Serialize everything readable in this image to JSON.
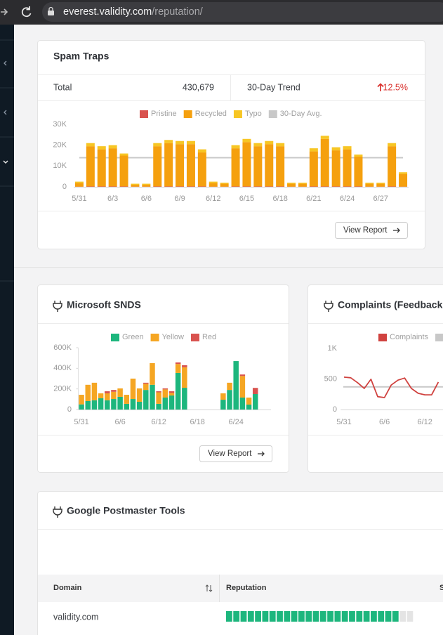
{
  "browser": {
    "url_host": "everest.validity.com",
    "url_path": "/reputation/"
  },
  "spam_traps": {
    "title": "Spam Traps",
    "total_label": "Total",
    "total": "430,679",
    "trend_label": "30-Day Trend",
    "trend": "12.5%",
    "button": "View Report"
  },
  "microsoft_snds": {
    "title": "Microsoft SNDS",
    "button": "View Report"
  },
  "complaints": {
    "title": "Complaints (Feedback L"
  },
  "google_postmaster": {
    "title": "Google Postmaster Tools",
    "columns": [
      "Domain",
      "Reputation",
      "S"
    ],
    "rows": [
      [
        "validity.com"
      ]
    ]
  },
  "chart_data": [
    {
      "type": "bar",
      "stacked": true,
      "categories": [
        "5/31",
        null,
        null,
        "6/3",
        null,
        null,
        "6/6",
        null,
        null,
        "6/9",
        null,
        null,
        "6/12",
        null,
        null,
        "6/15",
        null,
        null,
        "6/18",
        null,
        null,
        "6/21",
        null,
        null,
        "6/24",
        null,
        null,
        "6/27",
        null,
        null
      ],
      "series": [
        {
          "name": "Pristine",
          "color": "#d9534f",
          "values": [
            100,
            200,
            200,
            200,
            200,
            100,
            100,
            200,
            200,
            200,
            200,
            200,
            100,
            100,
            200,
            200,
            200,
            200,
            200,
            100,
            100,
            200,
            200,
            200,
            200,
            200,
            100,
            100,
            200,
            100
          ]
        },
        {
          "name": "Recycled",
          "color": "#f5a00e",
          "values": [
            1800,
            19300,
            17800,
            18300,
            14800,
            900,
            900,
            19300,
            20800,
            20300,
            20300,
            16300,
            1800,
            1400,
            18300,
            21300,
            19300,
            20300,
            19300,
            1400,
            1400,
            16800,
            22800,
            17300,
            17800,
            14300,
            1400,
            1400,
            19300,
            6100
          ]
        },
        {
          "name": "Typo",
          "color": "#f7c624",
          "values": [
            600,
            1500,
            1500,
            1500,
            1000,
            500,
            500,
            1500,
            1500,
            1500,
            1500,
            1500,
            600,
            500,
            1500,
            1500,
            1500,
            1500,
            1500,
            500,
            500,
            1500,
            1500,
            1500,
            1500,
            1000,
            500,
            500,
            1500,
            800
          ]
        }
      ],
      "reference_line": {
        "name": "30-Day Avg.",
        "color": "#c8c8c8",
        "value": 14000
      },
      "ylim": [
        0,
        30000
      ],
      "yticks": [
        0,
        {
          "value": 10000,
          "label": "10K"
        },
        {
          "value": 20000,
          "label": "20K"
        },
        {
          "value": 30000,
          "label": "30K"
        }
      ]
    },
    {
      "type": "bar",
      "stacked": true,
      "categories": [
        "5/31",
        null,
        null,
        null,
        null,
        null,
        "6/6",
        null,
        null,
        null,
        null,
        null,
        "6/12",
        null,
        null,
        null,
        null,
        null,
        "6/18",
        null,
        null,
        null,
        null,
        null,
        "6/24",
        null,
        null,
        null
      ],
      "series": [
        {
          "name": "Green",
          "color": "#1db67d",
          "values": [
            50000,
            82000,
            90000,
            109000,
            90000,
            102000,
            123000,
            55000,
            102000,
            75000,
            190000,
            240000,
            55000,
            116000,
            136000,
            355000,
            211000,
            null,
            null,
            null,
            null,
            null,
            95000,
            190000,
            470000,
            116000,
            48000,
            150000
          ]
        },
        {
          "name": "Yellow",
          "color": "#f5a623",
          "values": [
            93000,
            158000,
            170000,
            48000,
            67000,
            70000,
            82000,
            88000,
            198000,
            130000,
            60000,
            210000,
            112000,
            79000,
            25000,
            87000,
            199000,
            null,
            null,
            null,
            null,
            null,
            62000,
            70000,
            0,
            209000,
            68000,
            0
          ]
        },
        {
          "name": "Red",
          "color": "#d9534f",
          "values": [
            0,
            0,
            0,
            0,
            20000,
            18000,
            0,
            0,
            0,
            0,
            10000,
            0,
            10000,
            10000,
            16000,
            15000,
            20000,
            null,
            null,
            null,
            null,
            null,
            0,
            0,
            0,
            15000,
            0,
            60000
          ]
        }
      ],
      "ylim": [
        0,
        600000
      ],
      "yticks": [
        0,
        {
          "value": 200000,
          "label": "200K"
        },
        {
          "value": 400000,
          "label": "400K"
        },
        {
          "value": 600000,
          "label": "600K"
        }
      ]
    },
    {
      "type": "line",
      "categories": [
        "5/31",
        null,
        null,
        null,
        null,
        null,
        "6/6",
        null,
        null,
        null,
        null,
        null,
        "6/12",
        null,
        null
      ],
      "series": [
        {
          "name": "Complaints",
          "color": "#d0423f",
          "values": [
            530,
            520,
            440,
            345,
            495,
            210,
            195,
            400,
            480,
            515,
            345,
            265,
            240,
            240,
            450
          ]
        }
      ],
      "reference_line": {
        "color": "#c8c8c8",
        "value": 370
      },
      "ylim": [
        0,
        1000
      ],
      "yticks": [
        0,
        500,
        {
          "value": 1000,
          "label": "1K"
        }
      ]
    }
  ]
}
